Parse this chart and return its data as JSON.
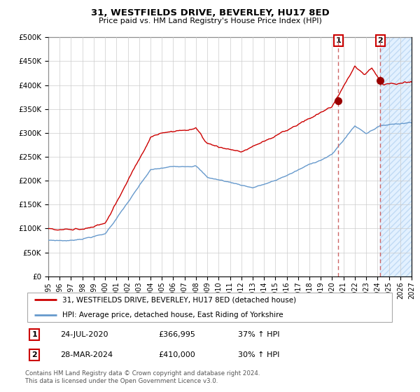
{
  "title1": "31, WESTFIELDS DRIVE, BEVERLEY, HU17 8ED",
  "title2": "Price paid vs. HM Land Registry's House Price Index (HPI)",
  "legend_line1": "31, WESTFIELDS DRIVE, BEVERLEY, HU17 8ED (detached house)",
  "legend_line2": "HPI: Average price, detached house, East Riding of Yorkshire",
  "sale1_date": "24-JUL-2020",
  "sale1_price": 366995,
  "sale1_hpi": "37% ↑ HPI",
  "sale2_date": "28-MAR-2024",
  "sale2_price": 410000,
  "sale2_hpi": "30% ↑ HPI",
  "footer": "Contains HM Land Registry data © Crown copyright and database right 2024.\nThis data is licensed under the Open Government Licence v3.0.",
  "red_color": "#cc0000",
  "blue_color": "#6699cc",
  "bg_color": "#ffffff",
  "grid_color": "#cccccc",
  "sale1_x": 2020.55,
  "sale2_x": 2024.24,
  "ylim": [
    0,
    500000
  ],
  "xlim_start": 1995.0,
  "xlim_end": 2027.0
}
